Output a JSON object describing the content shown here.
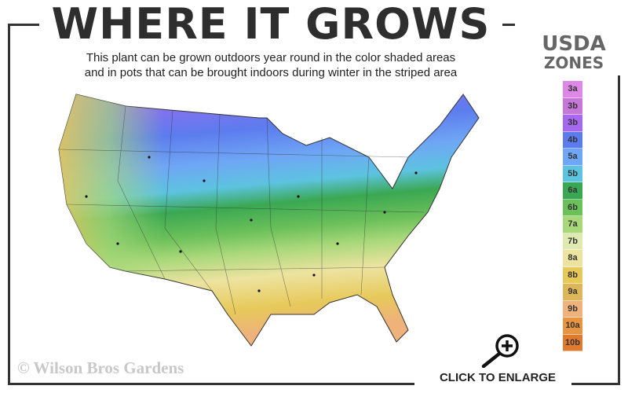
{
  "title": "WHERE IT GROWS",
  "subtitle_line1": "This plant can be grown outdoors year round in the color shaded areas",
  "subtitle_line2": "and in pots that can be brought indoors during winter in the striped area",
  "legend": {
    "title_line1": "USDA",
    "title_line2": "ZONES",
    "zones": [
      {
        "label": "3a",
        "color": "#dd88e6"
      },
      {
        "label": "3b",
        "color": "#c677d9"
      },
      {
        "label": "3b",
        "color": "#a668ee"
      },
      {
        "label": "4b",
        "color": "#5c7cee"
      },
      {
        "label": "5a",
        "color": "#6fa6f5"
      },
      {
        "label": "5b",
        "color": "#5dc3e0"
      },
      {
        "label": "6a",
        "color": "#3aa852"
      },
      {
        "label": "6b",
        "color": "#6cc05a"
      },
      {
        "label": "7a",
        "color": "#a9d87a"
      },
      {
        "label": "7b",
        "color": "#dfeab0"
      },
      {
        "label": "8a",
        "color": "#ede3a0"
      },
      {
        "label": "8b",
        "color": "#e7c95a"
      },
      {
        "label": "9a",
        "color": "#ddb65a"
      },
      {
        "label": "9b",
        "color": "#eeb27a"
      },
      {
        "label": "10a",
        "color": "#e89440"
      },
      {
        "label": "10b",
        "color": "#e07a2e"
      }
    ]
  },
  "copyright": "© Wilson Bros Gardens",
  "enlarge_label": "CLICK TO ENLARGE",
  "icons": {
    "enlarge": "magnifier-plus-icon"
  }
}
